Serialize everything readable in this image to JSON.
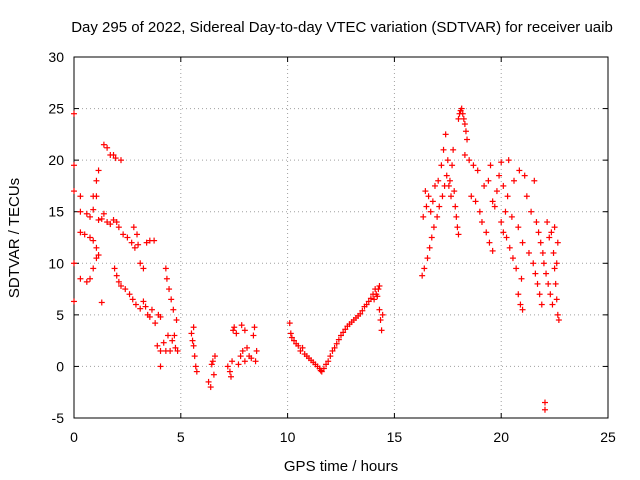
{
  "chart_data": {
    "type": "scatter",
    "title": "Day 295 of 2022, Sidereal Day-to-day VTEC variation (SDTVAR) for receiver uaib",
    "xlabel": "GPS time / hours",
    "ylabel": "SDTVAR / TECUs",
    "xlim": [
      0,
      25
    ],
    "ylim": [
      -5,
      30
    ],
    "xticks": [
      "0",
      "5",
      "10",
      "15",
      "20",
      "25"
    ],
    "yticks": [
      "-5",
      "0",
      "5",
      "10",
      "15",
      "20",
      "25",
      "30"
    ],
    "grid": true,
    "marker": "+",
    "color": "#ff0000",
    "series": [
      {
        "name": "SDTVAR",
        "points": [
          [
            0.0,
            24.5
          ],
          [
            0.0,
            19.5
          ],
          [
            0.0,
            17.0
          ],
          [
            0.0,
            10.0
          ],
          [
            0.0,
            6.3
          ],
          [
            0.3,
            16.5
          ],
          [
            0.3,
            15.0
          ],
          [
            0.3,
            13.0
          ],
          [
            0.3,
            8.5
          ],
          [
            0.5,
            12.8
          ],
          [
            0.6,
            14.8
          ],
          [
            0.6,
            8.2
          ],
          [
            0.75,
            12.5
          ],
          [
            0.75,
            14.5
          ],
          [
            0.75,
            8.5
          ],
          [
            0.9,
            12.2
          ],
          [
            0.9,
            15.2
          ],
          [
            0.9,
            9.5
          ],
          [
            0.9,
            16.5
          ],
          [
            1.05,
            11.5
          ],
          [
            1.05,
            16.5
          ],
          [
            1.05,
            10.5
          ],
          [
            1.05,
            18.0
          ],
          [
            1.15,
            10.8
          ],
          [
            1.15,
            19.0
          ],
          [
            1.15,
            14.2
          ],
          [
            1.3,
            14.3
          ],
          [
            1.3,
            6.2
          ],
          [
            1.4,
            21.5
          ],
          [
            1.4,
            14.8
          ],
          [
            1.55,
            14.0
          ],
          [
            1.55,
            21.2
          ],
          [
            1.7,
            13.8
          ],
          [
            1.7,
            20.5
          ],
          [
            1.85,
            14.2
          ],
          [
            1.85,
            20.5
          ],
          [
            1.9,
            9.5
          ],
          [
            1.95,
            20.2
          ],
          [
            2.0,
            8.8
          ],
          [
            2.0,
            14.0
          ],
          [
            2.1,
            8.2
          ],
          [
            2.1,
            13.5
          ],
          [
            2.2,
            20.0
          ],
          [
            2.2,
            7.8
          ],
          [
            2.3,
            12.8
          ],
          [
            2.4,
            7.5
          ],
          [
            2.5,
            12.5
          ],
          [
            2.6,
            7.0
          ],
          [
            2.7,
            12.0
          ],
          [
            2.75,
            6.5
          ],
          [
            2.8,
            13.5
          ],
          [
            2.85,
            11.5
          ],
          [
            2.9,
            6.0
          ],
          [
            2.95,
            12.8
          ],
          [
            3.0,
            11.8
          ],
          [
            3.1,
            10.0
          ],
          [
            3.1,
            5.6
          ],
          [
            3.25,
            9.5
          ],
          [
            3.25,
            6.3
          ],
          [
            3.35,
            5.8
          ],
          [
            3.4,
            12.0
          ],
          [
            3.45,
            5.0
          ],
          [
            3.55,
            4.8
          ],
          [
            3.55,
            12.2
          ],
          [
            3.65,
            5.5
          ],
          [
            3.75,
            12.2
          ],
          [
            3.8,
            4.2
          ],
          [
            3.9,
            2.0
          ],
          [
            3.95,
            5.0
          ],
          [
            4.05,
            4.8
          ],
          [
            4.05,
            1.5
          ],
          [
            4.05,
            0.0
          ],
          [
            4.2,
            2.3
          ],
          [
            4.3,
            9.5
          ],
          [
            4.3,
            1.5
          ],
          [
            4.35,
            8.5
          ],
          [
            4.4,
            3.0
          ],
          [
            4.45,
            7.5
          ],
          [
            4.5,
            1.5
          ],
          [
            4.55,
            6.5
          ],
          [
            4.6,
            2.5
          ],
          [
            4.65,
            5.5
          ],
          [
            4.7,
            3.0
          ],
          [
            4.75,
            1.8
          ],
          [
            4.8,
            4.5
          ],
          [
            4.85,
            1.5
          ],
          [
            5.5,
            3.2
          ],
          [
            5.55,
            2.5
          ],
          [
            5.6,
            2.0
          ],
          [
            5.65,
            1.0
          ],
          [
            5.7,
            0.0
          ],
          [
            5.75,
            -0.5
          ],
          [
            5.6,
            3.8
          ],
          [
            6.3,
            -1.5
          ],
          [
            6.4,
            -2.0
          ],
          [
            6.45,
            0.2
          ],
          [
            6.5,
            0.5
          ],
          [
            6.55,
            -0.8
          ],
          [
            6.6,
            1.0
          ],
          [
            7.2,
            0.0
          ],
          [
            7.3,
            -0.5
          ],
          [
            7.35,
            -1.0
          ],
          [
            7.4,
            0.5
          ],
          [
            7.45,
            3.5
          ],
          [
            7.5,
            3.8
          ],
          [
            7.6,
            3.2
          ],
          [
            7.7,
            0.2
          ],
          [
            7.8,
            1.0
          ],
          [
            7.85,
            4.0
          ],
          [
            7.9,
            1.5
          ],
          [
            8.0,
            3.5
          ],
          [
            8.0,
            0.5
          ],
          [
            8.1,
            1.8
          ],
          [
            8.2,
            1.0
          ],
          [
            8.3,
            0.8
          ],
          [
            8.4,
            3.0
          ],
          [
            8.45,
            3.8
          ],
          [
            8.5,
            0.5
          ],
          [
            8.55,
            1.5
          ],
          [
            10.1,
            4.2
          ],
          [
            10.15,
            3.2
          ],
          [
            10.2,
            2.8
          ],
          [
            10.3,
            2.5
          ],
          [
            10.4,
            2.2
          ],
          [
            10.5,
            2.0
          ],
          [
            10.6,
            1.5
          ],
          [
            10.7,
            1.8
          ],
          [
            10.8,
            1.2
          ],
          [
            10.9,
            1.0
          ],
          [
            11.0,
            0.8
          ],
          [
            11.1,
            0.6
          ],
          [
            11.2,
            0.4
          ],
          [
            11.3,
            0.2
          ],
          [
            11.4,
            0.0
          ],
          [
            11.5,
            -0.2
          ],
          [
            11.55,
            -0.4
          ],
          [
            11.6,
            -0.5
          ],
          [
            11.7,
            -0.2
          ],
          [
            11.8,
            0.2
          ],
          [
            11.9,
            0.5
          ],
          [
            12.0,
            1.0
          ],
          [
            12.1,
            1.5
          ],
          [
            12.2,
            1.8
          ],
          [
            12.3,
            2.2
          ],
          [
            12.4,
            2.6
          ],
          [
            12.5,
            3.0
          ],
          [
            12.6,
            3.3
          ],
          [
            12.7,
            3.6
          ],
          [
            12.8,
            3.9
          ],
          [
            12.9,
            4.1
          ],
          [
            13.0,
            4.3
          ],
          [
            13.1,
            4.5
          ],
          [
            13.2,
            4.7
          ],
          [
            13.3,
            4.9
          ],
          [
            13.4,
            5.1
          ],
          [
            13.5,
            5.4
          ],
          [
            13.6,
            5.8
          ],
          [
            13.7,
            6.0
          ],
          [
            13.8,
            6.3
          ],
          [
            13.9,
            6.6
          ],
          [
            14.0,
            7.0
          ],
          [
            14.05,
            6.5
          ],
          [
            14.1,
            7.5
          ],
          [
            14.15,
            7.0
          ],
          [
            14.2,
            6.8
          ],
          [
            14.25,
            7.5
          ],
          [
            14.3,
            5.5
          ],
          [
            14.35,
            4.5
          ],
          [
            14.4,
            3.5
          ],
          [
            14.45,
            5.0
          ],
          [
            14.3,
            7.8
          ],
          [
            16.3,
            8.8
          ],
          [
            16.35,
            14.5
          ],
          [
            16.4,
            9.5
          ],
          [
            16.45,
            17.0
          ],
          [
            16.5,
            15.5
          ],
          [
            16.55,
            10.5
          ],
          [
            16.6,
            16.5
          ],
          [
            16.65,
            11.5
          ],
          [
            16.7,
            15.0
          ],
          [
            16.75,
            12.5
          ],
          [
            16.8,
            16.0
          ],
          [
            16.85,
            13.5
          ],
          [
            16.9,
            17.5
          ],
          [
            17.0,
            14.5
          ],
          [
            17.05,
            18.0
          ],
          [
            17.1,
            15.5
          ],
          [
            17.2,
            19.5
          ],
          [
            17.25,
            16.5
          ],
          [
            17.3,
            21.0
          ],
          [
            17.35,
            17.5
          ],
          [
            17.4,
            22.5
          ],
          [
            17.45,
            18.5
          ],
          [
            17.5,
            20.0
          ],
          [
            17.55,
            17.5
          ],
          [
            17.6,
            18.0
          ],
          [
            17.65,
            16.5
          ],
          [
            17.7,
            19.5
          ],
          [
            17.75,
            21.0
          ],
          [
            17.8,
            17.0
          ],
          [
            17.85,
            15.5
          ],
          [
            17.9,
            14.5
          ],
          [
            17.95,
            13.5
          ],
          [
            18.0,
            12.8
          ],
          [
            18.0,
            24.0
          ],
          [
            18.05,
            24.5
          ],
          [
            18.1,
            24.8
          ],
          [
            18.15,
            25.0
          ],
          [
            18.2,
            24.5
          ],
          [
            18.25,
            24.0
          ],
          [
            18.3,
            23.5
          ],
          [
            18.35,
            22.8
          ],
          [
            18.4,
            22.0
          ],
          [
            18.3,
            20.5
          ],
          [
            18.5,
            20.0
          ],
          [
            18.7,
            19.5
          ],
          [
            18.9,
            19.0
          ],
          [
            18.6,
            16.5
          ],
          [
            18.8,
            16.0
          ],
          [
            19.0,
            15.0
          ],
          [
            19.1,
            14.0
          ],
          [
            19.3,
            13.0
          ],
          [
            19.45,
            12.0
          ],
          [
            19.6,
            11.2
          ],
          [
            19.2,
            17.5
          ],
          [
            19.4,
            18.0
          ],
          [
            19.5,
            19.5
          ],
          [
            19.6,
            16.0
          ],
          [
            19.7,
            15.5
          ],
          [
            19.8,
            17.0
          ],
          [
            19.9,
            18.5
          ],
          [
            20.0,
            14.0
          ],
          [
            20.0,
            19.8
          ],
          [
            20.1,
            13.0
          ],
          [
            20.1,
            17.5
          ],
          [
            20.2,
            15.0
          ],
          [
            20.25,
            12.5
          ],
          [
            20.3,
            16.5
          ],
          [
            20.35,
            20.0
          ],
          [
            20.4,
            11.5
          ],
          [
            20.5,
            14.5
          ],
          [
            20.55,
            10.5
          ],
          [
            20.6,
            18.0
          ],
          [
            20.7,
            9.5
          ],
          [
            20.8,
            13.5
          ],
          [
            20.8,
            7.0
          ],
          [
            20.85,
            19.0
          ],
          [
            20.9,
            6.0
          ],
          [
            20.95,
            8.5
          ],
          [
            21.0,
            5.5
          ],
          [
            21.0,
            12.0
          ],
          [
            21.1,
            18.5
          ],
          [
            21.2,
            16.5
          ],
          [
            21.3,
            11.0
          ],
          [
            21.4,
            15.0
          ],
          [
            21.5,
            10.0
          ],
          [
            21.55,
            18.0
          ],
          [
            21.6,
            9.0
          ],
          [
            21.65,
            14.0
          ],
          [
            21.7,
            8.0
          ],
          [
            21.75,
            13.0
          ],
          [
            21.8,
            7.0
          ],
          [
            21.85,
            12.0
          ],
          [
            21.9,
            6.0
          ],
          [
            21.95,
            11.0
          ],
          [
            22.0,
            10.0
          ],
          [
            22.05,
            -3.5
          ],
          [
            22.05,
            -4.2
          ],
          [
            22.1,
            9.0
          ],
          [
            22.15,
            14.0
          ],
          [
            22.2,
            8.0
          ],
          [
            22.25,
            12.5
          ],
          [
            22.3,
            7.0
          ],
          [
            22.35,
            13.0
          ],
          [
            22.4,
            6.0
          ],
          [
            22.45,
            11.0
          ],
          [
            22.5,
            9.5
          ],
          [
            22.5,
            13.5
          ],
          [
            22.55,
            8.0
          ],
          [
            22.6,
            6.5
          ],
          [
            22.6,
            10.0
          ],
          [
            22.65,
            5.0
          ],
          [
            22.65,
            12.0
          ],
          [
            22.7,
            4.5
          ]
        ]
      }
    ]
  }
}
